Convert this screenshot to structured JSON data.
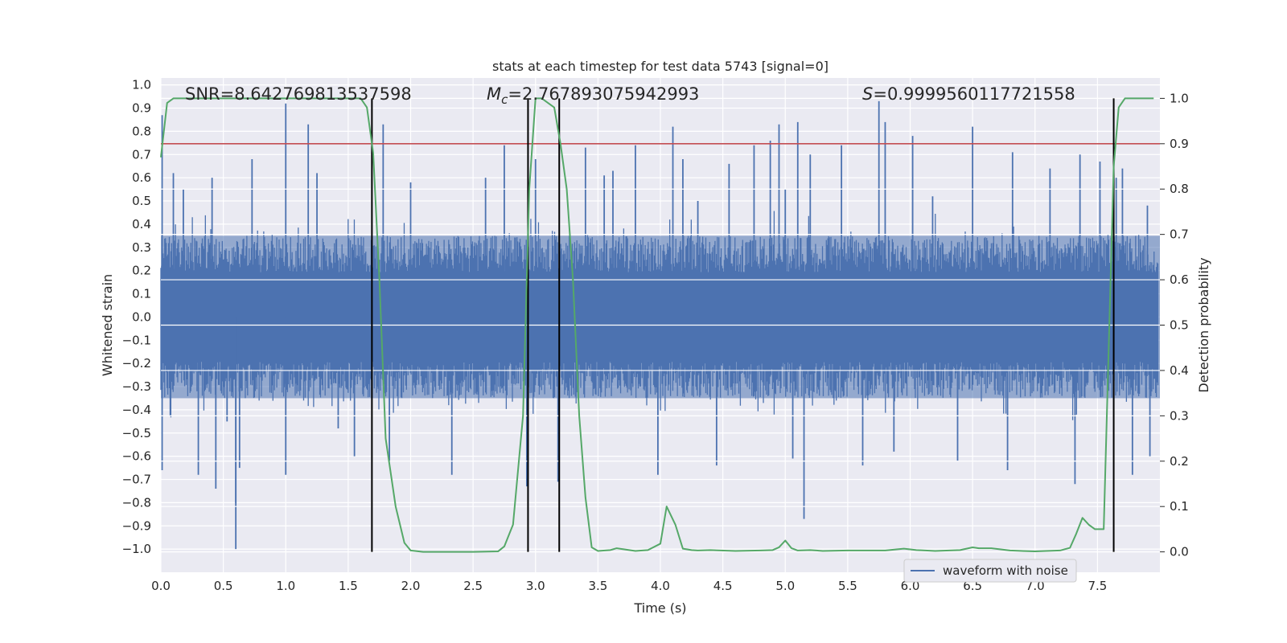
{
  "chart_data": {
    "type": "line",
    "title": "stats at each timestep for test data 5743 [signal=0]",
    "xlabel": "Time (s)",
    "ylabel_left": "Whitened strain",
    "ylabel_right": "Detection probability",
    "xlim": [
      0,
      8.0
    ],
    "ylim_left": [
      -1.1,
      1.03
    ],
    "ylim_right": [
      -0.045,
      1.045
    ],
    "xticks": [
      "0.0",
      "0.5",
      "1.0",
      "1.5",
      "2.0",
      "2.5",
      "3.0",
      "3.5",
      "4.0",
      "4.5",
      "5.0",
      "5.5",
      "6.0",
      "6.5",
      "7.0",
      "7.5"
    ],
    "yticks_left": [
      "1.0",
      "0.9",
      "0.8",
      "0.7",
      "0.6",
      "0.5",
      "0.4",
      "0.3",
      "0.2",
      "0.1",
      "0.0",
      "-0.1",
      "-0.2",
      "-0.3",
      "-0.4",
      "-0.5",
      "-0.6",
      "-0.7",
      "-0.8",
      "-0.9",
      "-1.0"
    ],
    "yticks_right": [
      "1.0",
      "0.9",
      "0.8",
      "0.7",
      "0.6",
      "0.5",
      "0.4",
      "0.3",
      "0.2",
      "0.1",
      "0.0"
    ],
    "annotations": {
      "snr": "SNR=8.642769813537598",
      "mc_prefix": "M",
      "mc_sub": "c",
      "mc_value": "=2.767893075942993",
      "s_prefix": "S",
      "s_value": "=0.9999560117721558"
    },
    "threshold_line": {
      "value_right": 0.9,
      "color": "#c44e52"
    },
    "vertical_markers": [
      1.69,
      2.94,
      3.19,
      7.63
    ],
    "legend": {
      "label": "waveform with noise",
      "location": "lower-right"
    },
    "series": [
      {
        "name": "waveform with noise",
        "axis": "left",
        "color": "#4c72b0",
        "envelope_max": 0.35,
        "spikes": [
          [
            0.01,
            0.87
          ],
          [
            0.01,
            -0.66
          ],
          [
            0.1,
            0.62
          ],
          [
            0.18,
            0.55
          ],
          [
            0.3,
            -0.68
          ],
          [
            0.41,
            0.6
          ],
          [
            0.44,
            -0.74
          ],
          [
            0.53,
            -0.45
          ],
          [
            0.6,
            -1.0
          ],
          [
            0.6,
            -0.8
          ],
          [
            0.63,
            -0.65
          ],
          [
            0.73,
            0.68
          ],
          [
            1.0,
            0.92
          ],
          [
            1.0,
            -0.68
          ],
          [
            1.18,
            0.83
          ],
          [
            1.25,
            0.62
          ],
          [
            1.42,
            -0.48
          ],
          [
            1.55,
            -0.6
          ],
          [
            1.78,
            0.83
          ],
          [
            1.83,
            -0.62
          ],
          [
            2.0,
            0.58
          ],
          [
            2.33,
            -0.68
          ],
          [
            2.6,
            0.6
          ],
          [
            2.75,
            0.74
          ],
          [
            2.93,
            -0.73
          ],
          [
            3.0,
            0.68
          ],
          [
            3.18,
            -0.71
          ],
          [
            3.4,
            0.73
          ],
          [
            3.55,
            0.61
          ],
          [
            3.62,
            0.63
          ],
          [
            3.8,
            0.74
          ],
          [
            3.98,
            -0.68
          ],
          [
            4.1,
            0.82
          ],
          [
            4.18,
            0.68
          ],
          [
            4.3,
            0.5
          ],
          [
            4.45,
            -0.64
          ],
          [
            4.55,
            0.66
          ],
          [
            4.75,
            0.74
          ],
          [
            4.88,
            0.76
          ],
          [
            4.95,
            0.83
          ],
          [
            5.0,
            0.55
          ],
          [
            5.06,
            -0.61
          ],
          [
            5.1,
            0.84
          ],
          [
            5.15,
            -0.87
          ],
          [
            5.2,
            0.7
          ],
          [
            5.45,
            0.74
          ],
          [
            5.62,
            -0.64
          ],
          [
            5.75,
            0.93
          ],
          [
            5.8,
            0.84
          ],
          [
            5.87,
            -0.58
          ],
          [
            6.02,
            0.78
          ],
          [
            6.18,
            0.52
          ],
          [
            6.38,
            -0.62
          ],
          [
            6.5,
            0.82
          ],
          [
            6.78,
            -0.66
          ],
          [
            6.82,
            0.71
          ],
          [
            7.12,
            0.64
          ],
          [
            7.32,
            -0.72
          ],
          [
            7.36,
            0.7
          ],
          [
            7.52,
            0.67
          ],
          [
            7.65,
            0.6
          ],
          [
            7.7,
            0.64
          ],
          [
            7.78,
            -0.68
          ],
          [
            7.9,
            0.48
          ],
          [
            7.92,
            -0.6
          ]
        ]
      },
      {
        "name": "detection probability",
        "axis": "right",
        "color": "#55a868",
        "x": [
          0.0,
          0.05,
          0.1,
          0.2,
          0.5,
          1.0,
          1.5,
          1.6,
          1.65,
          1.7,
          1.75,
          1.8,
          1.88,
          1.95,
          2.0,
          2.1,
          2.5,
          2.7,
          2.75,
          2.82,
          2.9,
          2.95,
          3.0,
          3.05,
          3.1,
          3.15,
          3.2,
          3.25,
          3.3,
          3.35,
          3.4,
          3.45,
          3.5,
          3.6,
          3.65,
          3.7,
          3.8,
          3.9,
          4.0,
          4.05,
          4.12,
          4.18,
          4.25,
          4.3,
          4.4,
          4.6,
          4.8,
          4.9,
          4.95,
          5.0,
          5.05,
          5.1,
          5.2,
          5.3,
          5.5,
          5.8,
          5.95,
          6.05,
          6.2,
          6.4,
          6.5,
          6.55,
          6.65,
          6.8,
          7.0,
          7.2,
          7.28,
          7.33,
          7.38,
          7.43,
          7.48,
          7.55,
          7.6,
          7.63,
          7.67,
          7.72,
          7.8,
          7.95
        ],
        "y": [
          0.87,
          0.99,
          1.0,
          1.0,
          1.0,
          1.0,
          1.0,
          1.0,
          0.98,
          0.88,
          0.6,
          0.25,
          0.1,
          0.02,
          0.003,
          0.0,
          0.0,
          0.001,
          0.012,
          0.06,
          0.3,
          0.8,
          1.0,
          1.0,
          0.99,
          0.98,
          0.9,
          0.8,
          0.6,
          0.3,
          0.12,
          0.01,
          0.002,
          0.004,
          0.008,
          0.006,
          0.002,
          0.004,
          0.018,
          0.1,
          0.06,
          0.007,
          0.004,
          0.003,
          0.004,
          0.002,
          0.003,
          0.004,
          0.01,
          0.025,
          0.008,
          0.003,
          0.004,
          0.002,
          0.003,
          0.003,
          0.007,
          0.004,
          0.002,
          0.004,
          0.01,
          0.008,
          0.008,
          0.003,
          0.001,
          0.003,
          0.009,
          0.04,
          0.075,
          0.06,
          0.05,
          0.05,
          0.55,
          0.85,
          0.98,
          1.0,
          1.0,
          1.0
        ]
      }
    ]
  }
}
